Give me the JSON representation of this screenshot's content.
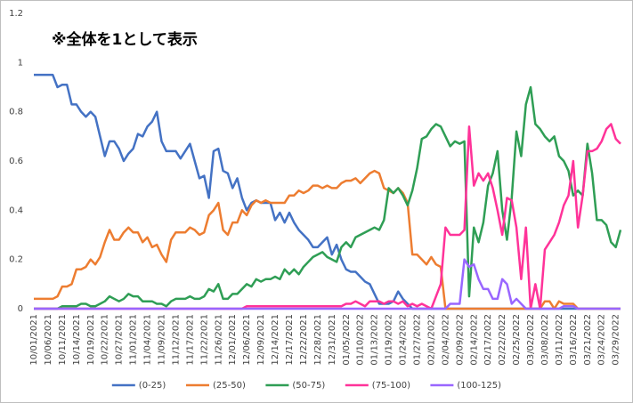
{
  "chart_data": {
    "type": "line",
    "annotation": "※全体を1として表示",
    "categories": [
      "10/01/2021",
      null,
      null,
      "10/06/2021",
      null,
      null,
      "10/11/2021",
      null,
      null,
      "10/14/2021",
      null,
      null,
      "10/19/2021",
      null,
      null,
      "10/22/2021",
      null,
      null,
      "10/27/2021",
      null,
      null,
      "11/01/2021",
      null,
      null,
      "11/04/2021",
      null,
      null,
      "11/09/2021",
      null,
      null,
      "11/12/2021",
      null,
      null,
      "11/17/2021",
      null,
      null,
      "11/22/2021",
      null,
      null,
      "11/26/2021",
      null,
      null,
      "12/01/2021",
      null,
      null,
      "12/06/2021",
      null,
      null,
      "12/09/2021",
      null,
      null,
      "12/14/2021",
      null,
      null,
      "12/17/2021",
      null,
      null,
      "12/22/2021",
      null,
      null,
      "12/28/2021",
      null,
      null,
      "12/31/2021",
      null,
      null,
      "01/05/2022",
      null,
      null,
      "01/10/2022",
      null,
      null,
      "01/13/2022",
      null,
      null,
      "01/19/2022",
      null,
      null,
      "01/24/2022",
      null,
      null,
      "01/27/2022",
      null,
      null,
      "02/01/2022",
      null,
      null,
      "02/04/2022",
      null,
      null,
      "02/09/2022",
      null,
      null,
      "02/14/2022",
      null,
      null,
      "02/17/2022",
      null,
      null,
      "02/22/2022",
      null,
      null,
      "02/25/2022",
      null,
      null,
      "03/02/2022",
      null,
      null,
      "03/08/2022",
      null,
      null,
      "03/11/2022",
      null,
      null,
      "03/16/2022",
      null,
      null,
      "03/21/2022",
      null,
      null,
      "03/24/2022",
      null,
      null,
      "03/29/2022",
      null
    ],
    "series": [
      {
        "name": "(0-25)",
        "color": "#4472c4",
        "values": [
          0.95,
          0.95,
          0.95,
          0.95,
          0.95,
          0.9,
          0.91,
          0.91,
          0.83,
          0.83,
          0.8,
          0.78,
          0.8,
          0.78,
          0.7,
          0.62,
          0.68,
          0.68,
          0.65,
          0.6,
          0.63,
          0.65,
          0.71,
          0.7,
          0.74,
          0.76,
          0.8,
          0.68,
          0.64,
          0.64,
          0.64,
          0.61,
          0.64,
          0.67,
          0.6,
          0.53,
          0.54,
          0.45,
          0.64,
          0.65,
          0.56,
          0.55,
          0.49,
          0.53,
          0.45,
          0.4,
          0.43,
          0.44,
          0.43,
          0.43,
          0.43,
          0.36,
          0.39,
          0.35,
          0.39,
          0.35,
          0.32,
          0.3,
          0.28,
          0.25,
          0.25,
          0.27,
          0.29,
          0.22,
          0.26,
          0.2,
          0.16,
          0.15,
          0.15,
          0.13,
          0.11,
          0.1,
          0.06,
          0.02,
          0.02,
          0.02,
          0.03,
          0.07,
          0.04,
          0.02,
          0,
          0,
          0,
          0,
          0,
          0,
          0,
          0,
          0,
          0,
          0,
          0,
          0,
          0,
          0,
          0,
          0,
          0,
          0,
          0,
          0,
          0,
          0,
          0,
          0,
          0,
          0,
          0,
          0,
          0,
          0,
          0,
          0,
          0,
          0,
          0,
          0,
          0,
          0,
          0,
          0,
          0,
          0,
          0,
          0
        ]
      },
      {
        "name": "(25-50)",
        "color": "#ed7d31",
        "values": [
          0.04,
          0.04,
          0.04,
          0.04,
          0.04,
          0.05,
          0.09,
          0.09,
          0.1,
          0.16,
          0.16,
          0.17,
          0.2,
          0.18,
          0.21,
          0.27,
          0.32,
          0.28,
          0.28,
          0.31,
          0.33,
          0.31,
          0.31,
          0.27,
          0.29,
          0.25,
          0.26,
          0.22,
          0.19,
          0.28,
          0.31,
          0.31,
          0.31,
          0.33,
          0.32,
          0.3,
          0.31,
          0.38,
          0.4,
          0.43,
          0.32,
          0.3,
          0.35,
          0.35,
          0.4,
          0.38,
          0.42,
          0.44,
          0.43,
          0.44,
          0.43,
          0.43,
          0.43,
          0.43,
          0.46,
          0.46,
          0.48,
          0.47,
          0.48,
          0.5,
          0.5,
          0.49,
          0.5,
          0.49,
          0.49,
          0.51,
          0.52,
          0.52,
          0.53,
          0.51,
          0.53,
          0.55,
          0.56,
          0.55,
          0.49,
          0.48,
          0.47,
          0.49,
          0.47,
          0.43,
          0.22,
          0.22,
          0.2,
          0.18,
          0.21,
          0.18,
          0.17,
          0,
          0,
          0,
          0,
          0,
          0,
          0,
          0,
          0,
          0,
          0,
          0,
          0,
          0,
          0,
          0,
          0,
          0,
          0,
          0,
          0,
          0.03,
          0.03,
          0,
          0.03,
          0.02,
          0.02,
          0.02,
          0,
          0,
          0,
          0,
          0,
          0,
          0,
          0,
          0,
          0
        ]
      },
      {
        "name": "(50-75)",
        "color": "#2f9e55",
        "values": [
          0,
          0,
          0,
          0,
          0,
          0,
          0.01,
          0.01,
          0.01,
          0.01,
          0.02,
          0.02,
          0.01,
          0.01,
          0.02,
          0.03,
          0.05,
          0.04,
          0.03,
          0.04,
          0.06,
          0.05,
          0.05,
          0.03,
          0.03,
          0.03,
          0.02,
          0.02,
          0.01,
          0.03,
          0.04,
          0.04,
          0.04,
          0.05,
          0.04,
          0.04,
          0.05,
          0.08,
          0.07,
          0.1,
          0.04,
          0.04,
          0.06,
          0.06,
          0.08,
          0.1,
          0.09,
          0.12,
          0.11,
          0.12,
          0.12,
          0.13,
          0.12,
          0.16,
          0.14,
          0.16,
          0.14,
          0.17,
          0.19,
          0.21,
          0.22,
          0.23,
          0.21,
          0.2,
          0.19,
          0.25,
          0.27,
          0.25,
          0.29,
          0.3,
          0.31,
          0.32,
          0.33,
          0.32,
          0.36,
          0.49,
          0.47,
          0.49,
          0.46,
          0.42,
          0.48,
          0.57,
          0.69,
          0.7,
          0.73,
          0.75,
          0.74,
          0.7,
          0.66,
          0.68,
          0.67,
          0.68,
          0.05,
          0.33,
          0.27,
          0.35,
          0.5,
          0.55,
          0.64,
          0.4,
          0.28,
          0.45,
          0.72,
          0.62,
          0.83,
          0.9,
          0.75,
          0.73,
          0.7,
          0.68,
          0.7,
          0.62,
          0.6,
          0.56,
          0.46,
          0.48,
          0.46,
          0.67,
          0.55,
          0.36,
          0.36,
          0.34,
          0.27,
          0.25,
          0.32
        ]
      },
      {
        "name": "(75-100)",
        "color": "#ff3399",
        "values": [
          0,
          0,
          0,
          0,
          0,
          0,
          0,
          0,
          0,
          0,
          0,
          0,
          0,
          0,
          0,
          0,
          0,
          0,
          0,
          0,
          0,
          0,
          0,
          0,
          0,
          0,
          0,
          0,
          0,
          0,
          0,
          0,
          0,
          0,
          0,
          0,
          0,
          0,
          0,
          0,
          0,
          0,
          0,
          0,
          0,
          0.01,
          0.01,
          0.01,
          0.01,
          0.01,
          0.01,
          0.01,
          0.01,
          0.01,
          0.01,
          0.01,
          0.01,
          0.01,
          0.01,
          0.01,
          0.01,
          0.01,
          0.01,
          0.01,
          0.01,
          0.01,
          0.02,
          0.02,
          0.03,
          0.02,
          0.01,
          0.03,
          0.03,
          0.03,
          0.02,
          0.03,
          0.03,
          0.02,
          0.03,
          0.01,
          0.02,
          0.01,
          0.02,
          0.01,
          0,
          0.05,
          0.1,
          0.33,
          0.3,
          0.3,
          0.3,
          0.32,
          0.74,
          0.5,
          0.55,
          0.52,
          0.55,
          0.49,
          0.4,
          0.3,
          0.45,
          0.44,
          0.33,
          0.12,
          0.33,
          0,
          0.1,
          0,
          0.24,
          0.27,
          0.3,
          0.35,
          0.42,
          0.46,
          0.6,
          0.33,
          0.46,
          0.64,
          0.64,
          0.65,
          0.68,
          0.73,
          0.75,
          0.69,
          0.67
        ]
      },
      {
        "name": "(100-125)",
        "color": "#9966ff",
        "values": [
          0,
          0,
          0,
          0,
          0,
          0,
          0,
          0,
          0,
          0,
          0,
          0,
          0,
          0,
          0,
          0,
          0,
          0,
          0,
          0,
          0,
          0,
          0,
          0,
          0,
          0,
          0,
          0,
          0,
          0,
          0,
          0,
          0,
          0,
          0,
          0,
          0,
          0,
          0,
          0,
          0,
          0,
          0,
          0,
          0,
          0,
          0,
          0,
          0,
          0,
          0,
          0,
          0,
          0,
          0,
          0,
          0,
          0,
          0,
          0,
          0,
          0,
          0,
          0,
          0,
          0,
          0,
          0,
          0,
          0,
          0,
          0,
          0,
          0,
          0,
          0,
          0,
          0,
          0,
          0,
          0,
          0,
          0,
          0,
          0,
          0,
          0,
          0,
          0.02,
          0.02,
          0.02,
          0.2,
          0.17,
          0.18,
          0.12,
          0.08,
          0.08,
          0.04,
          0.04,
          0.12,
          0.1,
          0.02,
          0.04,
          0.02,
          0,
          0,
          0,
          0,
          0,
          0,
          0,
          0,
          0.01,
          0.01,
          0.01,
          0,
          0,
          0,
          0,
          0,
          0,
          0,
          0,
          0,
          0
        ]
      }
    ],
    "ylim": [
      0,
      1.2
    ],
    "yticks": [
      0,
      0.2,
      0.4,
      0.6,
      0.8,
      1,
      1.2
    ],
    "grid": false,
    "legend": "bottom"
  }
}
